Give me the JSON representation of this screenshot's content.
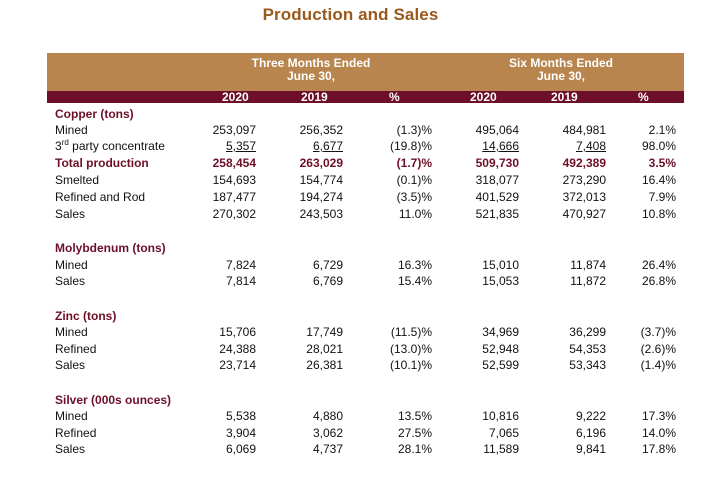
{
  "title": "Production and Sales",
  "header": {
    "three_months_line1": "Three Months Ended",
    "three_months_line2": "June 30,",
    "six_months_line1": "Six Months Ended",
    "six_months_line2": "June 30,",
    "years": [
      "2020",
      "2019",
      "%",
      "2020",
      "2019",
      "%"
    ]
  },
  "sections": [
    {
      "title": "Copper (tons)",
      "rows": [
        {
          "label": "Mined",
          "values": [
            "253,097",
            "256,352",
            "(1.3)%",
            "495,064",
            "484,981",
            "2.1%"
          ]
        },
        {
          "label_prefix": "3",
          "label_sup": "rd",
          "label_rest": " party concentrate",
          "values": [
            "5,357",
            "6,677",
            "(19.8)%",
            "14,666",
            "7,408",
            "98.0%"
          ]
        },
        {
          "label": "Total production",
          "values": [
            "258,454",
            "263,029",
            "(1.7)%",
            "509,730",
            "492,389",
            "3.5%"
          ]
        },
        {
          "label": "Smelted",
          "values": [
            "154,693",
            "154,774",
            "(0.1)%",
            "318,077",
            "273,290",
            "16.4%"
          ]
        },
        {
          "label": "Refined and Rod",
          "values": [
            "187,477",
            "194,274",
            "(3.5)%",
            "401,529",
            "372,013",
            "7.9%"
          ]
        },
        {
          "label": "Sales",
          "values": [
            "270,302",
            "243,503",
            "11.0%",
            "521,835",
            "470,927",
            "10.8%"
          ]
        }
      ]
    },
    {
      "title": "Molybdenum (tons)",
      "rows": [
        {
          "label": "Mined",
          "values": [
            "7,824",
            "6,729",
            "16.3%",
            "15,010",
            "11,874",
            "26.4%"
          ]
        },
        {
          "label": "Sales",
          "values": [
            "7,814",
            "6,769",
            "15.4%",
            "15,053",
            "11,872",
            "26.8%"
          ]
        }
      ]
    },
    {
      "title": "Zinc (tons)",
      "rows": [
        {
          "label": "Mined",
          "values": [
            "15,706",
            "17,749",
            "(11.5)%",
            "34,969",
            "36,299",
            "(3.7)%"
          ]
        },
        {
          "label": "Refined",
          "values": [
            "24,388",
            "28,021",
            "(13.0)%",
            "52,948",
            "54,353",
            "(2.6)%"
          ]
        },
        {
          "label": "Sales",
          "values": [
            "23,714",
            "26,381",
            "(10.1)%",
            "52,599",
            "53,343",
            "(1.4)%"
          ]
        }
      ]
    },
    {
      "title": "Silver (000s ounces)",
      "rows": [
        {
          "label": "Mined",
          "values": [
            "5,538",
            "4,880",
            "13.5%",
            "10,816",
            "9,222",
            "17.3%"
          ]
        },
        {
          "label": "Refined",
          "values": [
            "3,904",
            "3,062",
            "27.5%",
            "7,065",
            "6,196",
            "14.0%"
          ]
        },
        {
          "label": "Sales",
          "values": [
            "6,069",
            "4,737",
            "28.1%",
            "11,589",
            "9,841",
            "17.8%"
          ]
        }
      ]
    }
  ]
}
